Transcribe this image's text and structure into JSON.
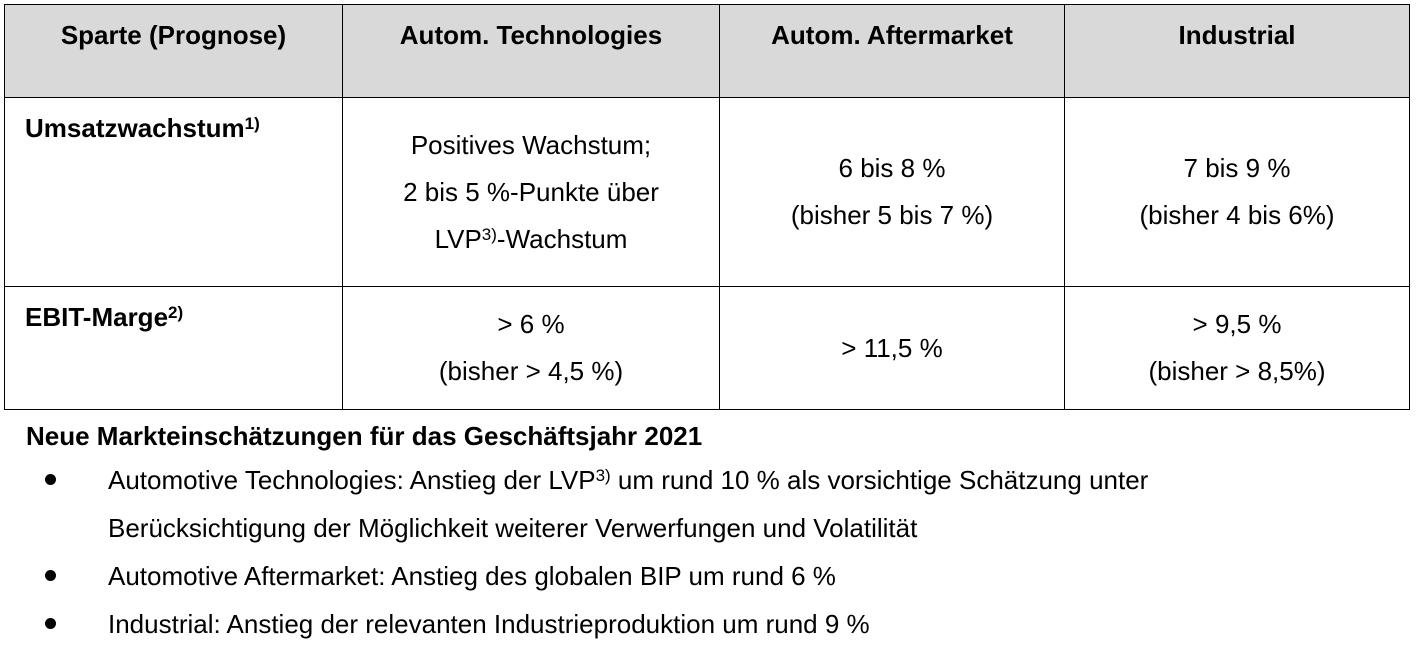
{
  "table": {
    "headers": [
      "Sparte (Prognose)",
      "Autom. Technologies",
      "Autom. Aftermarket",
      "Industrial"
    ],
    "rows": [
      {
        "label": "Umsatzwachstum",
        "label_sup": "1)",
        "cells": [
          {
            "line1": "Positives Wachstum;",
            "line2": "2 bis 5 %-Punkte über",
            "line3_pre": "LVP",
            "line3_sup": "3)",
            "line3_post": "-Wachstum"
          },
          {
            "line1": "6 bis 8 %",
            "line2": "(bisher 5 bis 7 %)"
          },
          {
            "line1": "7 bis 9 %",
            "line2": "(bisher 4 bis 6%)"
          }
        ]
      },
      {
        "label": "EBIT-Marge",
        "label_sup": "2)",
        "cells": [
          {
            "line1": "> 6 %",
            "line2": "(bisher > 4,5 %)"
          },
          {
            "line1": "> 11,5 %"
          },
          {
            "line1": "> 9,5 %",
            "line2": "(bisher > 8,5%)"
          }
        ]
      }
    ]
  },
  "notes": {
    "title": "Neue Markteinschätzungen für das Geschäftsjahr 2021",
    "bullets": [
      {
        "pre": "Automotive Technologies: Anstieg der LVP",
        "sup": "3)",
        "post": " um rund 10 % als vorsichtige Schätzung unter",
        "line2": "Berücksichtigung der Möglichkeit weiterer Verwerfungen und Volatilität"
      },
      {
        "text": "Automotive Aftermarket: Anstieg des globalen BIP um rund 6 %"
      },
      {
        "text": "Industrial: Anstieg der relevanten Industrieproduktion um rund 9 %"
      }
    ]
  },
  "colors": {
    "header_background": "#d9d9d9",
    "border": "#000000",
    "text": "#000000"
  }
}
